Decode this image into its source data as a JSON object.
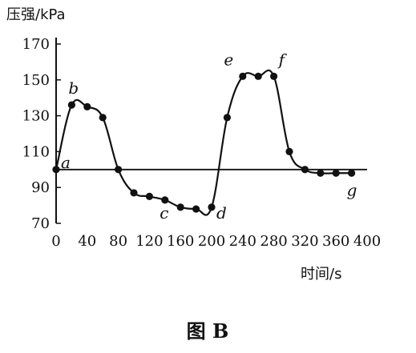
{
  "chart_data": {
    "type": "line",
    "ylabel": "压强/kPa",
    "xlabel": "时间/s",
    "caption": "图 B",
    "xlim": [
      0,
      400
    ],
    "ylim": [
      70,
      170
    ],
    "x_ticks": [
      0,
      40,
      80,
      120,
      160,
      200,
      240,
      280,
      320,
      360,
      400
    ],
    "y_ticks": [
      70,
      90,
      110,
      130,
      150,
      170
    ],
    "reference_line_y": 100,
    "series": [
      {
        "x": [
          0,
          20,
          40,
          60,
          80,
          100,
          120,
          140,
          160,
          180,
          200,
          220,
          240,
          260,
          280,
          300,
          320,
          340,
          360,
          380
        ],
        "y": [
          100,
          136,
          135,
          129,
          100,
          87,
          85,
          83,
          79,
          78,
          79,
          129,
          152,
          152,
          152,
          110,
          100,
          98,
          98,
          98
        ]
      }
    ],
    "annotations": [
      {
        "text": "a",
        "x": 0,
        "y": 100
      },
      {
        "text": "b",
        "x": 20,
        "y": 136
      },
      {
        "text": "c",
        "x": 160,
        "y": 79
      },
      {
        "text": "d",
        "x": 200,
        "y": 79
      },
      {
        "text": "e",
        "x": 220,
        "y": 152
      },
      {
        "text": "f",
        "x": 280,
        "y": 152
      },
      {
        "text": "g",
        "x": 380,
        "y": 98
      }
    ]
  }
}
